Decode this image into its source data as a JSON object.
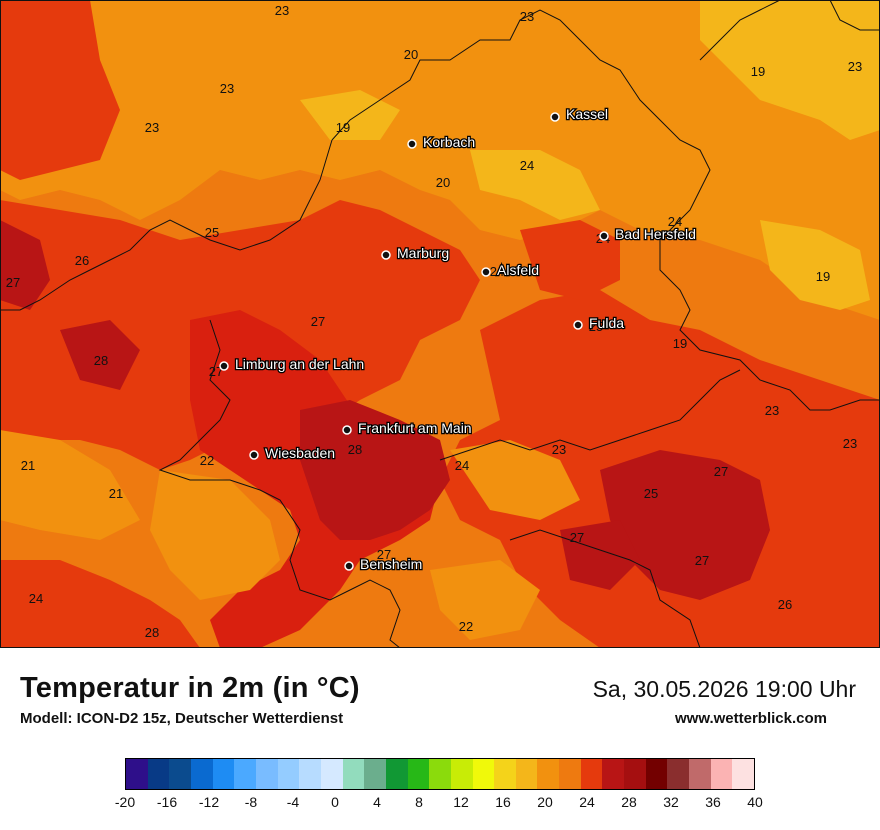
{
  "title": "Temperatur in 2m (in °C)",
  "subtitle": "Modell: ICON-D2 15z, Deutscher Wetterdienst",
  "datetime": "Sa, 30.05.2026 19:00 Uhr",
  "website": "www.wetterblick.com",
  "colors": {
    "temp_19_21": "#f4b61a",
    "temp_21_23": "#f2910f",
    "temp_23_25": "#ee7a10",
    "temp_25_27": "#e53a0d",
    "temp_27_29": "#d9200f",
    "temp_29_31": "#b81515",
    "border": "#111111"
  },
  "legend": {
    "colors": [
      "#2e0f8a",
      "#083a86",
      "#0b4b8e",
      "#0a6ad0",
      "#1e8cf3",
      "#4ba9ff",
      "#79bcff",
      "#94ccff",
      "#b7dcff",
      "#d5e9ff",
      "#92dcbd",
      "#6bae8d",
      "#119834",
      "#27b817",
      "#8bdb0c",
      "#c8ec06",
      "#f0f90a",
      "#f4d31a",
      "#f4b61a",
      "#f2910f",
      "#ee7a10",
      "#e53a0d",
      "#b81515",
      "#a50f10",
      "#730000",
      "#8a2e2e",
      "#c06a6a",
      "#fbb3b3",
      "#fde1e1"
    ],
    "ticks": [
      "-20",
      "-16",
      "-12",
      "-8",
      "-4",
      "0",
      "4",
      "8",
      "12",
      "16",
      "20",
      "24",
      "28",
      "32",
      "36",
      "40"
    ]
  },
  "cities": [
    {
      "name": "Kassel"
    },
    {
      "name": "Korbach"
    },
    {
      "name": "Bad Hersfeld"
    },
    {
      "name": "Marburg"
    },
    {
      "name": "Alsfeld"
    },
    {
      "name": "Fulda"
    },
    {
      "name": "Limburg an der Lahn"
    },
    {
      "name": "Frankfurt am Main"
    },
    {
      "name": "Wiesbaden"
    },
    {
      "name": "Bensheim"
    }
  ],
  "temperatures": [
    "23",
    "23",
    "20",
    "23",
    "19",
    "23",
    "19",
    "23",
    "24",
    "20",
    "24",
    "24",
    "25",
    "26",
    "27",
    "19",
    "27",
    "28",
    "24",
    "25",
    "19",
    "27",
    "23",
    "23",
    "28",
    "21",
    "22",
    "24",
    "21",
    "25",
    "27",
    "23",
    "27",
    "27",
    "27",
    "24",
    "26",
    "28",
    "22"
  ]
}
